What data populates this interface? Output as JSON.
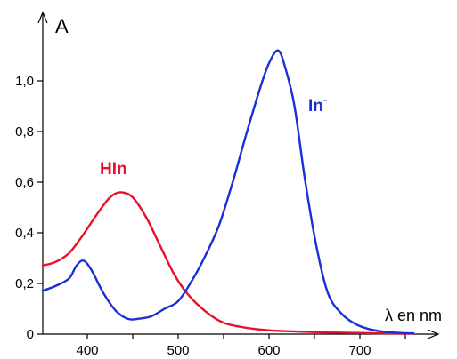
{
  "chart_data": {
    "type": "line",
    "ylabel": "A",
    "xlabel": "λ en nm",
    "xlim": [
      350,
      780
    ],
    "ylim": [
      0,
      1.2
    ],
    "x_ticks": [
      400,
      500,
      600,
      700
    ],
    "y_ticks": [
      {
        "value": 0,
        "label": "0"
      },
      {
        "value": 0.2,
        "label": "0,2"
      },
      {
        "value": 0.4,
        "label": "0,4"
      },
      {
        "value": 0.6,
        "label": "0,6"
      },
      {
        "value": 0.8,
        "label": "0,8"
      },
      {
        "value": 1.0,
        "label": "1,0"
      }
    ],
    "grid": false,
    "legend": "none",
    "series": [
      {
        "name": "HIn",
        "color": "#e8102a",
        "x": [
          350,
          365,
          380,
          395,
          410,
          425,
          437,
          450,
          465,
          480,
          495,
          510,
          530,
          550,
          575,
          600,
          630,
          660,
          690,
          720,
          750,
          760
        ],
        "y": [
          0.27,
          0.285,
          0.32,
          0.39,
          0.47,
          0.54,
          0.56,
          0.54,
          0.46,
          0.35,
          0.24,
          0.16,
          0.09,
          0.045,
          0.025,
          0.015,
          0.01,
          0.007,
          0.005,
          0.003,
          0.002,
          0.002
        ]
      },
      {
        "name": "In⁻",
        "color": "#1a2fd6",
        "x": [
          350,
          365,
          380,
          388,
          396,
          405,
          418,
          432,
          445,
          455,
          470,
          485,
          500,
          515,
          530,
          545,
          560,
          575,
          590,
          600,
          610,
          618,
          628,
          640,
          652,
          665,
          680,
          695,
          710,
          730,
          750,
          760
        ],
        "y": [
          0.17,
          0.19,
          0.22,
          0.27,
          0.29,
          0.25,
          0.16,
          0.09,
          0.06,
          0.06,
          0.07,
          0.1,
          0.13,
          0.21,
          0.31,
          0.43,
          0.6,
          0.79,
          0.97,
          1.07,
          1.12,
          1.05,
          0.9,
          0.6,
          0.35,
          0.16,
          0.08,
          0.04,
          0.02,
          0.008,
          0.004,
          0.003
        ]
      }
    ],
    "annotations": [
      {
        "text": "HIn",
        "series": 0
      },
      {
        "text": "In",
        "sup": "-",
        "series": 1
      }
    ]
  }
}
